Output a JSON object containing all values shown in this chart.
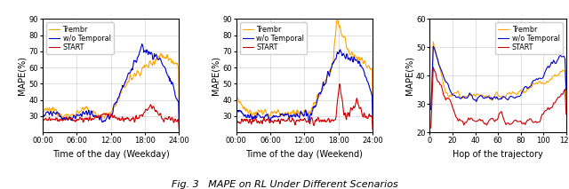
{
  "fig_title": "Fig. 3   MAPE on RL Under Different Scenarios",
  "subplot1": {
    "xlabel": "Time of the day (Weekday)",
    "ylabel": "MAPE(%)",
    "ylim": [
      20,
      90
    ],
    "yticks": [
      30,
      40,
      50,
      60,
      70,
      80,
      90
    ],
    "xtick_vals": [
      0,
      6,
      12,
      18,
      24
    ],
    "xtick_labels": [
      "00:00",
      "06:00",
      "12:00",
      "18:00",
      "24:00"
    ]
  },
  "subplot2": {
    "xlabel": "Time of the day (Weekend)",
    "ylabel": "MAPE(%)",
    "ylim": [
      20,
      90
    ],
    "yticks": [
      30,
      40,
      50,
      60,
      70,
      80,
      90
    ],
    "xtick_vals": [
      0,
      6,
      12,
      18,
      24
    ],
    "xtick_labels": [
      "00:00",
      "06:00",
      "12:00",
      "18:00",
      "24:00"
    ]
  },
  "subplot3": {
    "xlabel": "Hop of the trajectory",
    "ylabel": "MAPE(%)",
    "ylim": [
      20,
      60
    ],
    "yticks": [
      20,
      30,
      40,
      50,
      60
    ],
    "xtick_vals": [
      0,
      20,
      40,
      60,
      80,
      100,
      120
    ],
    "xtick_labels": [
      "0",
      "20",
      "40",
      "60",
      "80",
      "100",
      "120"
    ],
    "xmin": 0,
    "xmax": 120
  },
  "colors": {
    "Trembr": "#FFA500",
    "wo_Temporal": "#0000CC",
    "START": "#CC0000"
  },
  "legend_labels": [
    "Trembr",
    "w/o Temporal",
    "START"
  ],
  "lw": 0.8,
  "figsize": [
    6.4,
    2.13
  ],
  "dpi": 100
}
